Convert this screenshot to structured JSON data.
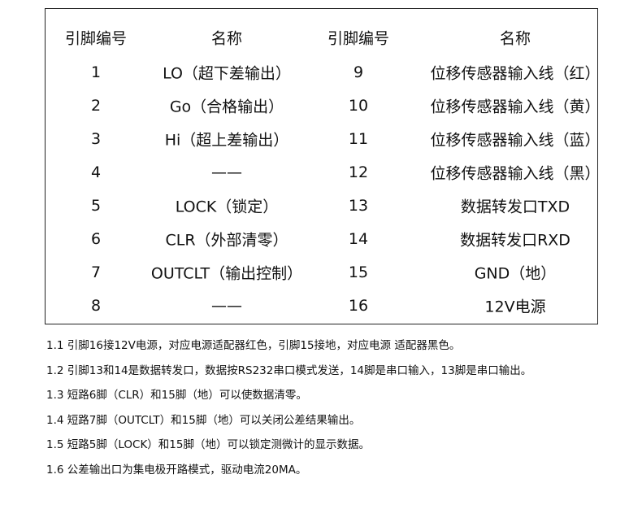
{
  "table": {
    "headers": [
      "引脚编号",
      "名称",
      "引脚编号",
      "名称"
    ],
    "rows": [
      [
        "1",
        "LO（超下差输出）",
        "9",
        "位移传感器输入线（红）"
      ],
      [
        "2",
        "Go（合格输出）",
        "10",
        "位移传感器输入线（黄）"
      ],
      [
        "3",
        "Hi（超上差输出）",
        "11",
        "位移传感器输入线（蓝）"
      ],
      [
        "4",
        "——",
        "12",
        "位移传感器输入线（黑）"
      ],
      [
        "5",
        "LOCK（锁定）",
        "13",
        "数据转发口TXD"
      ],
      [
        "6",
        "CLR（外部清零）",
        "14",
        "数据转发口RXD"
      ],
      [
        "7",
        "OUTCLT（输出控制）",
        "15",
        "GND（地）"
      ],
      [
        "8",
        "——",
        "16",
        "12V电源"
      ]
    ]
  },
  "notes": [
    "1.1 引脚16接12V电源，对应电源适配器红色，引脚15接地，对应电源 适配器黑色。",
    "1.2 引脚13和14是数据转发口，数据按RS232串口模式发送，14脚是串口输入，13脚是串口输出。",
    "1.3 短路6脚（CLR）和15脚（地）可以使数据清零。",
    "1.4 短路7脚（OUTCLT）和15脚（地）可以关闭公差结果输出。",
    "1.5 短路5脚（LOCK）和15脚（地）可以锁定测微计的显示数据。",
    "1.6 公差输出口为集电极开路模式，驱动电流20MA。"
  ]
}
